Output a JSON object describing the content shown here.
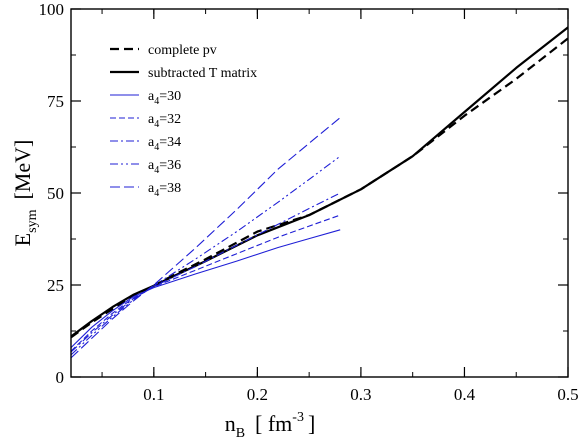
{
  "chart_data": {
    "type": "line",
    "xlabel": {
      "main": "n",
      "sub": "B",
      "bracket_open": "[ fm",
      "sup": "-3",
      "bracket_close": "]"
    },
    "ylabel": {
      "main": "E",
      "sub": "sym",
      "unit": "[MeV]"
    },
    "xlim": [
      0.02,
      0.5
    ],
    "ylim": [
      0,
      100
    ],
    "xticks": [
      {
        "value": 0.1,
        "label": "0.1"
      },
      {
        "value": 0.2,
        "label": "0.2"
      },
      {
        "value": 0.3,
        "label": "0.3"
      },
      {
        "value": 0.4,
        "label": "0.4"
      },
      {
        "value": 0.5,
        "label": "0.5"
      }
    ],
    "yticks": [
      {
        "value": 0,
        "label": "0"
      },
      {
        "value": 25,
        "label": "25"
      },
      {
        "value": 50,
        "label": "50"
      },
      {
        "value": 75,
        "label": "75"
      },
      {
        "value": 100,
        "label": "100"
      }
    ],
    "grid": false,
    "legend_position": "top-left",
    "series": [
      {
        "name": "complete pv",
        "color": "#000000",
        "style": "dashed-thick",
        "x": [
          0.02,
          0.04,
          0.06,
          0.08,
          0.1,
          0.12,
          0.15,
          0.2,
          0.25,
          0.3,
          0.35,
          0.4,
          0.45,
          0.5
        ],
        "y": [
          10.8,
          14.8,
          18.5,
          22.0,
          24.8,
          27.8,
          32.0,
          39.5,
          44.0,
          51.0,
          60.0,
          71.0,
          81.0,
          92.0
        ]
      },
      {
        "name": "subtracted T matrix",
        "color": "#000000",
        "style": "solid-thick",
        "x": [
          0.02,
          0.04,
          0.06,
          0.08,
          0.1,
          0.12,
          0.15,
          0.2,
          0.25,
          0.3,
          0.35,
          0.4,
          0.45,
          0.5
        ],
        "y": [
          11.0,
          15.2,
          19.0,
          22.3,
          24.8,
          27.5,
          31.5,
          38.5,
          44.0,
          51.0,
          60.0,
          72.0,
          84.0,
          95.0
        ]
      },
      {
        "name": "a₄=30",
        "label_base": "a",
        "label_sub": "4",
        "label_value": "=30",
        "color": "#1f1fd6",
        "style": "solid",
        "x": [
          0.02,
          0.04,
          0.06,
          0.08,
          0.1,
          0.14,
          0.18,
          0.22,
          0.25,
          0.28
        ],
        "y": [
          8.0,
          13.5,
          18.0,
          21.8,
          24.3,
          28.0,
          31.5,
          35.2,
          37.6,
          40.0
        ]
      },
      {
        "name": "a₄=32",
        "label_base": "a",
        "label_sub": "4",
        "label_value": "=32",
        "color": "#1f1fd6",
        "style": "dashed",
        "x": [
          0.02,
          0.04,
          0.06,
          0.08,
          0.1,
          0.14,
          0.18,
          0.22,
          0.25,
          0.28
        ],
        "y": [
          7.0,
          12.5,
          17.3,
          21.4,
          24.5,
          29.0,
          33.5,
          38.0,
          41.0,
          44.0
        ]
      },
      {
        "name": "a₄=34",
        "label_base": "a",
        "label_sub": "4",
        "label_value": "=34",
        "color": "#1f1fd6",
        "style": "dashdot",
        "x": [
          0.02,
          0.04,
          0.06,
          0.08,
          0.1,
          0.14,
          0.18,
          0.22,
          0.25,
          0.28
        ],
        "y": [
          6.8,
          12.0,
          16.8,
          21.2,
          24.6,
          30.0,
          35.8,
          41.5,
          45.8,
          50.0
        ]
      },
      {
        "name": "a₄=36",
        "label_base": "a",
        "label_sub": "4",
        "label_value": "=36",
        "color": "#1f1fd6",
        "style": "dashdotdot",
        "x": [
          0.02,
          0.04,
          0.06,
          0.08,
          0.1,
          0.14,
          0.18,
          0.22,
          0.25,
          0.28
        ],
        "y": [
          6.0,
          11.3,
          16.3,
          20.9,
          24.8,
          32.0,
          39.5,
          47.5,
          53.7,
          60.0
        ]
      },
      {
        "name": "a₄=38",
        "label_base": "a",
        "label_sub": "4",
        "label_value": "=38",
        "color": "#1f1fd6",
        "style": "longdash",
        "x": [
          0.02,
          0.04,
          0.06,
          0.08,
          0.1,
          0.14,
          0.18,
          0.22,
          0.25,
          0.28
        ],
        "y": [
          5.2,
          10.5,
          15.8,
          20.6,
          25.0,
          35.0,
          45.5,
          56.5,
          63.5,
          70.5
        ]
      }
    ]
  }
}
